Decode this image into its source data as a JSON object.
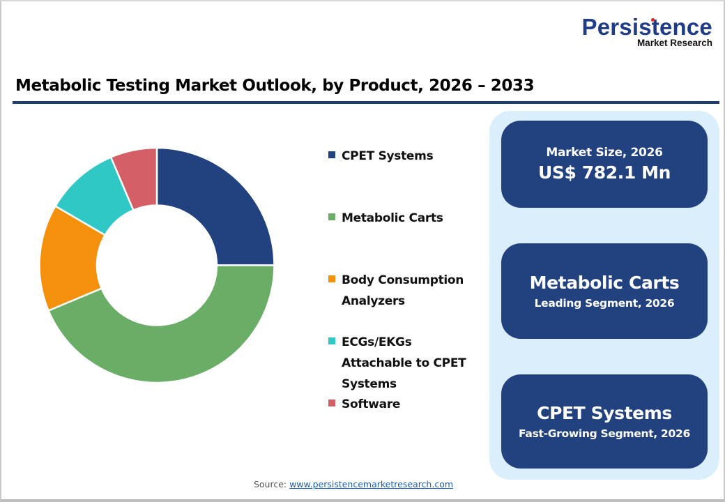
{
  "logo": {
    "name": "Persistence",
    "subtitle": "Market Research",
    "primary_color": "#1f3c88",
    "dot_color": "#d9252a"
  },
  "title": "Metabolic Testing Market Outlook, by Product, 2026 – 2033",
  "legend": [
    {
      "label": "CPET Systems",
      "color": "#22427f"
    },
    {
      "label": "Metabolic Carts",
      "color": "#6aad66"
    },
    {
      "label": "Body Consumption\nAnalyzers",
      "color": "#f5900c"
    },
    {
      "label": "ECGs/EKGs\nAttachable to CPET\nSystems",
      "color": "#30c8c4"
    },
    {
      "label": "Software",
      "color": "#d45f66"
    }
  ],
  "cards": [
    {
      "line1": "Market Size, 2026",
      "line2": "US$ 782.1 Mn"
    },
    {
      "line1": "Metabolic Carts",
      "line2": "Leading Segment, 2026"
    },
    {
      "line1": "CPET Systems",
      "line2": "Fast-Growing Segment, 2026"
    }
  ],
  "source": {
    "prefix": "Source: ",
    "link_text": "www.persistencemarketresearch.com"
  },
  "colors": {
    "title_rule": "#1f3f75",
    "panel_bg": "#dbeefb",
    "card_bg": "#22427f"
  },
  "chart_data": {
    "type": "pie",
    "subtype": "donut",
    "title": "Metabolic Testing Market Outlook, by Product, 2026 – 2033",
    "categories": [
      "CPET Systems",
      "Metabolic Carts",
      "Body Consumption Analyzers",
      "ECGs/EKGs Attachable to CPET Systems",
      "Software"
    ],
    "values": [
      25.0,
      43.7,
      14.7,
      10.2,
      6.4
    ],
    "unit": "% share (estimated from slice angles)",
    "colors": [
      "#22427f",
      "#6aad66",
      "#f5900c",
      "#30c8c4",
      "#d45f66"
    ],
    "start_angle_deg": 0,
    "direction": "clockwise",
    "legend_position": "right",
    "data_labels": false
  }
}
